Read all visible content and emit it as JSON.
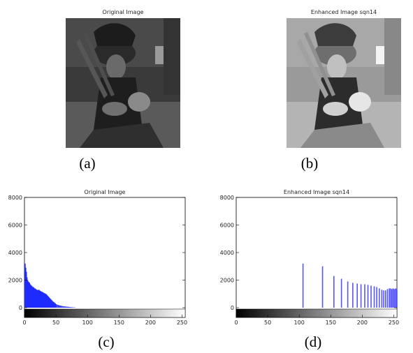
{
  "figure": {
    "panel_a": {
      "title": "Original Image",
      "caption": "(a)"
    },
    "panel_b": {
      "title": "Enhanced Image sqn14",
      "caption": "(b)"
    },
    "panel_c": {
      "title": "Original Image",
      "caption": "(c)"
    },
    "panel_d": {
      "title": "Enhanced Image sqn14",
      "caption": "(d)"
    }
  },
  "chart_data": [
    {
      "type": "bar",
      "title": "Original Image",
      "xlim": [
        0,
        255
      ],
      "ylim": [
        0,
        8000
      ],
      "xticks": [
        0,
        50,
        100,
        150,
        200,
        250
      ],
      "yticks": [
        0,
        2000,
        4000,
        6000,
        8000
      ],
      "color": "#1f2bff",
      "x": [
        1,
        2,
        3,
        4,
        5,
        6,
        7,
        8,
        9,
        10,
        11,
        12,
        13,
        14,
        15,
        16,
        17,
        18,
        19,
        20,
        21,
        22,
        23,
        24,
        25,
        26,
        27,
        28,
        29,
        30,
        31,
        32,
        33,
        34,
        35,
        36,
        37,
        38,
        39,
        40,
        41,
        42,
        43,
        44,
        45,
        46,
        47,
        48,
        49,
        50,
        52,
        54,
        56,
        58,
        60,
        62,
        64,
        66,
        68,
        70,
        72,
        74,
        76,
        78,
        80
      ],
      "values": [
        3200,
        2900,
        2600,
        2200,
        2000,
        1900,
        1850,
        1800,
        1700,
        1650,
        1600,
        1550,
        1500,
        1500,
        1450,
        1400,
        1380,
        1350,
        1300,
        1300,
        1280,
        1250,
        1300,
        1250,
        1200,
        1200,
        1150,
        1150,
        1100,
        1100,
        1050,
        1050,
        1000,
        1000,
        950,
        900,
        850,
        800,
        750,
        700,
        650,
        600,
        550,
        500,
        450,
        420,
        380,
        340,
        300,
        260,
        220,
        190,
        160,
        140,
        120,
        100,
        90,
        80,
        70,
        60,
        50,
        40,
        30,
        25,
        20
      ]
    },
    {
      "type": "bar",
      "title": "Enhanced Image sqn14",
      "xlim": [
        0,
        255
      ],
      "ylim": [
        0,
        8000
      ],
      "xticks": [
        0,
        50,
        100,
        150,
        200,
        250
      ],
      "yticks": [
        0,
        2000,
        4000,
        6000,
        8000
      ],
      "color": "#5555ff",
      "x": [
        106,
        137,
        155,
        167,
        177,
        185,
        192,
        198,
        204,
        209,
        214,
        219,
        223,
        227,
        231,
        234,
        237,
        240,
        243,
        245,
        247,
        249,
        251,
        253,
        254,
        255
      ],
      "values": [
        3200,
        3000,
        2300,
        2100,
        1900,
        1800,
        1750,
        1700,
        1700,
        1650,
        1600,
        1550,
        1500,
        1400,
        1300,
        1250,
        1250,
        1350,
        1400,
        1400,
        1350,
        1400,
        1350,
        1400,
        1350,
        1300
      ]
    }
  ]
}
